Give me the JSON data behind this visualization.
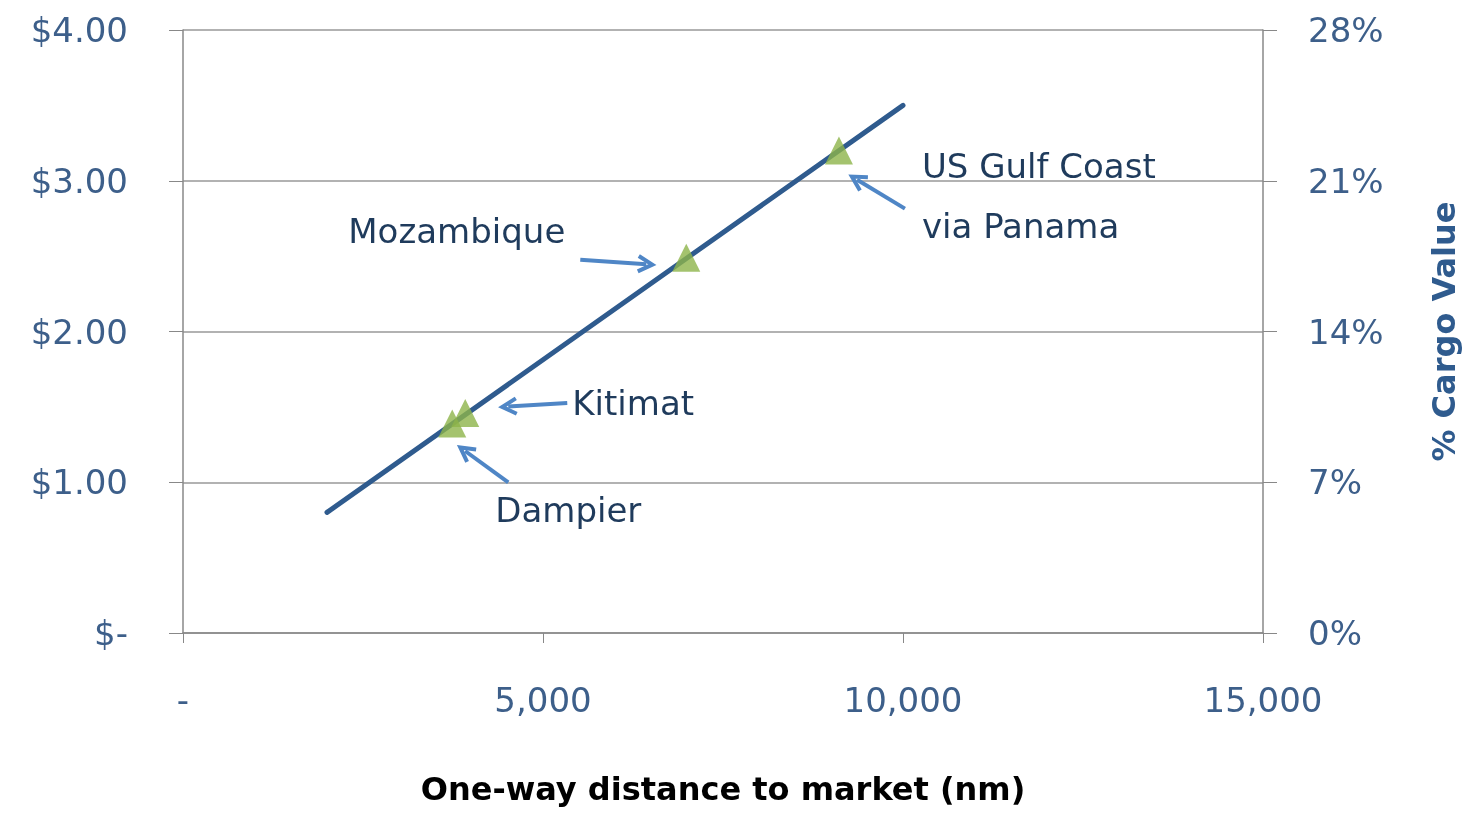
{
  "chart_data": {
    "type": "line",
    "xlabel": "One-way distance to market (nm)",
    "y2label": "% Cargo Value",
    "xlim": [
      0,
      15000
    ],
    "xticks": [
      {
        "value": 0,
        "label": "-"
      },
      {
        "value": 5000,
        "label": "5,000"
      },
      {
        "value": 10000,
        "label": "10,000"
      },
      {
        "value": 15000,
        "label": "15,000"
      }
    ],
    "ylim": [
      0,
      4
    ],
    "yticks": [
      {
        "value": 0,
        "label": "$-"
      },
      {
        "value": 1,
        "label": "$1.00"
      },
      {
        "value": 2,
        "label": "$2.00"
      },
      {
        "value": 3,
        "label": "$3.00"
      },
      {
        "value": 4,
        "label": "$4.00"
      }
    ],
    "y2lim": [
      0,
      28
    ],
    "y2ticks": [
      {
        "value": 0,
        "label": "0%"
      },
      {
        "value": 7,
        "label": "7%"
      },
      {
        "value": 14,
        "label": "14%"
      },
      {
        "value": 21,
        "label": "21%"
      },
      {
        "value": 28,
        "label": "28%"
      }
    ],
    "grid": "y",
    "series": [
      {
        "color": "#2f5b8e",
        "marker": "none",
        "x": [
          2000,
          10000
        ],
        "values": [
          0.8,
          3.5
        ]
      },
      {
        "type": "scatter",
        "color": "#8db44a",
        "marker": "triangle",
        "x": [
          3740,
          3920,
          6990,
          9110
        ],
        "values": [
          1.39,
          1.46,
          2.49,
          3.2
        ]
      }
    ],
    "annotations": [
      "Dampier",
      "Kitimat",
      "Mozambique",
      "US Gulf Coast\nvia Panama"
    ]
  }
}
